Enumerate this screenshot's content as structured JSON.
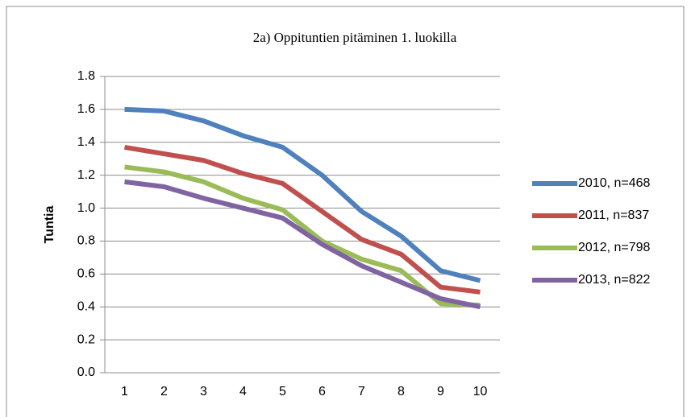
{
  "chart_data": {
    "type": "line",
    "title": "2a) Oppituntien pitäminen 1. luokilla",
    "y_label": "Tuntia",
    "categories": [
      "1",
      "2",
      "3",
      "4",
      "5",
      "6",
      "7",
      "8",
      "9",
      "10"
    ],
    "series": [
      {
        "name": "2010, n=468",
        "color": "#4f81bd",
        "values": [
          1.6,
          1.59,
          1.53,
          1.44,
          1.37,
          1.2,
          0.98,
          0.83,
          0.62,
          0.56
        ]
      },
      {
        "name": "2011, n=837",
        "color": "#c0504d",
        "values": [
          1.37,
          1.33,
          1.29,
          1.21,
          1.15,
          0.98,
          0.81,
          0.72,
          0.52,
          0.49
        ]
      },
      {
        "name": "2012, n=798",
        "color": "#9bbb59",
        "values": [
          1.25,
          1.22,
          1.16,
          1.06,
          0.99,
          0.8,
          0.69,
          0.62,
          0.42,
          0.41
        ]
      },
      {
        "name": "2013, n=822",
        "color": "#8064a2",
        "values": [
          1.16,
          1.13,
          1.06,
          1.0,
          0.94,
          0.78,
          0.65,
          0.55,
          0.45,
          0.4
        ]
      }
    ],
    "ylim": [
      0,
      1.8
    ],
    "yticks": [
      {
        "value": 0,
        "label": "0.0"
      },
      0.2,
      0.4,
      0.6,
      0.8,
      {
        "value": 1,
        "label": "1.0"
      },
      1.2,
      1.4,
      1.6,
      1.8
    ],
    "grid": true,
    "legend": "right"
  }
}
